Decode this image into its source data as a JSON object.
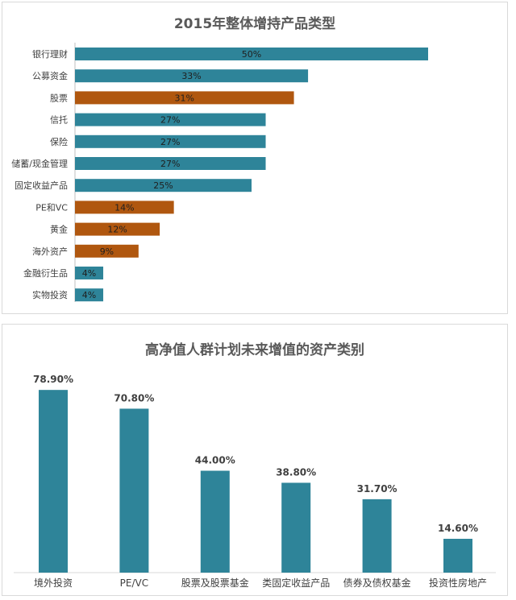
{
  "chart_data": [
    {
      "type": "bar",
      "orientation": "horizontal",
      "title": "2015年整体增持产品类型",
      "categories": [
        "银行理财",
        "公募资金",
        "股票",
        "信托",
        "保险",
        "储蓄/现金管理",
        "固定收益产品",
        "PE和VC",
        "黄金",
        "海外资产",
        "金融衍生品",
        "实物投资"
      ],
      "values": [
        50,
        33,
        31,
        27,
        27,
        27,
        25,
        14,
        12,
        9,
        4,
        4
      ],
      "labels": [
        "50%",
        "33%",
        "31%",
        "27%",
        "27%",
        "27%",
        "25%",
        "14%",
        "12%",
        "9%",
        "4%",
        "4%"
      ],
      "highlight": [
        false,
        false,
        true,
        false,
        false,
        false,
        false,
        true,
        true,
        true,
        false,
        false
      ],
      "colors": {
        "base": "#2e8499",
        "highlight": "#b0570f"
      },
      "xlim": [
        0,
        50
      ],
      "grid": false,
      "legend": "none"
    },
    {
      "type": "bar",
      "orientation": "vertical",
      "title": "高净值人群计划未来增值的资产类别",
      "categories": [
        "境外投资",
        "PE/VC",
        "股票及股票基金",
        "类固定收益产品",
        "债券及债权基金",
        "投资性房地产"
      ],
      "values": [
        78.9,
        70.8,
        44.0,
        38.8,
        31.7,
        14.6
      ],
      "labels": [
        "78.90%",
        "70.80%",
        "44.00%",
        "38.80%",
        "31.70%",
        "14.60%"
      ],
      "colors": {
        "base": "#2e8499"
      },
      "ylim": [
        0,
        80
      ],
      "grid": false,
      "legend": "none"
    }
  ]
}
